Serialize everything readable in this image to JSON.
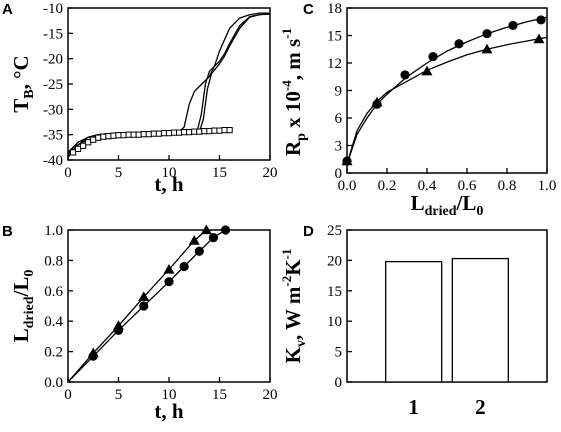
{
  "chart_data": [
    {
      "panel": "A",
      "type": "line",
      "xlabel": "t, h",
      "ylabel_main": "T",
      "ylabel_sub": "B",
      "ylabel_rest": ", °C",
      "xlim": [
        0,
        20
      ],
      "ylim": [
        -40,
        -10
      ],
      "xticks": [
        0,
        5,
        10,
        15,
        20
      ],
      "yticks": [
        -40,
        -35,
        -30,
        -25,
        -20,
        -15,
        -10
      ],
      "series": [
        {
          "marker": "line",
          "x": [
            0,
            0.5,
            1,
            2,
            3,
            4,
            6,
            8,
            10,
            11,
            11.5,
            12,
            12.5,
            13,
            13.5,
            14,
            14.5,
            15,
            16,
            17,
            18,
            19,
            20
          ],
          "y": [
            -39,
            -37.5,
            -37,
            -35.5,
            -35,
            -34.8,
            -34.7,
            -34.6,
            -34.5,
            -34.4,
            -33.5,
            -29,
            -26.5,
            -25.5,
            -24.5,
            -23.5,
            -21.5,
            -18.5,
            -14,
            -12,
            -11.3,
            -11,
            -11
          ]
        },
        {
          "marker": "line",
          "x": [
            0,
            0.5,
            1,
            2,
            3,
            4,
            6,
            8,
            10,
            12,
            12.8,
            13.2,
            13.6,
            14,
            14.5,
            15,
            15.5,
            16,
            17,
            18,
            19,
            20
          ],
          "y": [
            -38.5,
            -37.5,
            -36.5,
            -35.5,
            -35,
            -34.8,
            -34.7,
            -34.6,
            -34.5,
            -34.5,
            -34.2,
            -31,
            -25,
            -22.5,
            -21.5,
            -20.5,
            -19,
            -17,
            -13.5,
            -11.7,
            -11.3,
            -11
          ]
        },
        {
          "marker": "line",
          "x": [
            0,
            0.5,
            1,
            2,
            3,
            4,
            6,
            8,
            10,
            12,
            13,
            13.4,
            13.8,
            14.2,
            14.6,
            15,
            15.5,
            16,
            17,
            18,
            19,
            20
          ],
          "y": [
            -39.5,
            -38,
            -37,
            -36,
            -35.5,
            -35.2,
            -35,
            -34.8,
            -34.7,
            -34.6,
            -34.5,
            -32,
            -26,
            -23,
            -22,
            -21,
            -19.5,
            -17.5,
            -14,
            -11.8,
            -11.3,
            -11.2
          ]
        },
        {
          "marker": "square",
          "x": [
            0.5,
            1,
            1.5,
            2,
            2.5,
            3,
            3.5,
            4,
            4.5,
            5,
            5.5,
            6,
            6.5,
            7,
            7.5,
            8,
            8.5,
            9,
            9.5,
            10,
            10.5,
            11,
            11.5,
            12,
            12.5,
            13,
            13.5,
            14,
            14.5,
            15,
            15.5,
            16
          ],
          "y": [
            -38.5,
            -37.8,
            -37.2,
            -36.5,
            -36,
            -35.6,
            -35.4,
            -35.3,
            -35.2,
            -35.1,
            -35.1,
            -35,
            -35,
            -35,
            -34.9,
            -34.9,
            -34.8,
            -34.8,
            -34.7,
            -34.7,
            -34.6,
            -34.6,
            -34.5,
            -34.5,
            -34.4,
            -34.4,
            -34.3,
            -34.3,
            -34.2,
            -34.2,
            -34.1,
            -34.1
          ]
        }
      ]
    },
    {
      "panel": "B",
      "type": "line",
      "xlabel": "t, h",
      "ylabel_main": "L",
      "ylabel_sub": "dried",
      "ylabel_rest": "/L",
      "ylabel_sub2": "0",
      "xlim": [
        0,
        20
      ],
      "ylim": [
        0,
        1
      ],
      "xticks": [
        0,
        5,
        10,
        15,
        20
      ],
      "yticks": [
        "0.0",
        "0.2",
        "0.4",
        "0.6",
        "0.8",
        "1.0"
      ],
      "series": [
        {
          "marker": "triangle",
          "x": [
            2.5,
            5,
            7.5,
            10,
            12.5,
            13.7
          ],
          "y": [
            0.19,
            0.37,
            0.56,
            0.74,
            0.93,
            1.0
          ]
        },
        {
          "marker": "circle",
          "x": [
            2.5,
            5,
            7.5,
            10,
            11.5,
            13,
            14.4,
            15.6
          ],
          "y": [
            0.17,
            0.34,
            0.5,
            0.66,
            0.76,
            0.86,
            0.95,
            1.0
          ]
        }
      ]
    },
    {
      "panel": "C",
      "type": "line",
      "xlabel_main": "L",
      "xlabel_sub": "dried",
      "xlabel_rest": "/L",
      "xlabel_sub2": "0",
      "ylabel_main": "R",
      "ylabel_sub": "p",
      "ylabel_rest": " x 10",
      "ylabel_sup": "-4",
      "ylabel_rest2": ", m s",
      "ylabel_sup2": "-1",
      "xlim": [
        0,
        1
      ],
      "ylim": [
        0,
        18
      ],
      "xticks": [
        "0.0",
        "0.2",
        "0.4",
        "0.6",
        "0.8",
        "1.0"
      ],
      "yticks": [
        0,
        3,
        6,
        9,
        12,
        15,
        18
      ],
      "series": [
        {
          "marker": "circle",
          "x": [
            0,
            0.15,
            0.29,
            0.43,
            0.56,
            0.7,
            0.83,
            0.97
          ],
          "y": [
            1.3,
            7.5,
            10.7,
            12.7,
            14.1,
            15.2,
            16.1,
            16.7
          ]
        },
        {
          "marker": "triangle",
          "x": [
            0,
            0.15,
            0.4,
            0.7,
            0.96
          ],
          "y": [
            1.3,
            7.7,
            11.1,
            13.5,
            14.6
          ]
        }
      ],
      "fits": [
        {
          "x": [
            0,
            0.05,
            0.1,
            0.15,
            0.2,
            0.3,
            0.4,
            0.5,
            0.6,
            0.7,
            0.8,
            0.9,
            1.0
          ],
          "y": [
            1.0,
            4.2,
            6.0,
            7.5,
            8.6,
            10.5,
            12.0,
            13.3,
            14.3,
            15.2,
            15.9,
            16.5,
            17.0
          ]
        },
        {
          "x": [
            0,
            0.05,
            0.1,
            0.15,
            0.2,
            0.3,
            0.4,
            0.5,
            0.6,
            0.7,
            0.8,
            0.9,
            1.0
          ],
          "y": [
            1.0,
            4.6,
            6.5,
            7.8,
            8.8,
            10.0,
            11.2,
            12.1,
            12.9,
            13.5,
            14.0,
            14.4,
            14.8
          ]
        }
      ]
    },
    {
      "panel": "D",
      "type": "bar",
      "ylabel_main": "K",
      "ylabel_sub": "v",
      "ylabel_rest": ", W m",
      "ylabel_sup": "-2",
      "ylabel_rest2": "K",
      "ylabel_sup2": "-1",
      "categories": [
        "1",
        "2"
      ],
      "values": [
        19.8,
        20.3
      ],
      "xlim": [
        0,
        3
      ],
      "ylim": [
        0,
        25
      ],
      "yticks": [
        0,
        5,
        10,
        15,
        20,
        25
      ]
    }
  ]
}
